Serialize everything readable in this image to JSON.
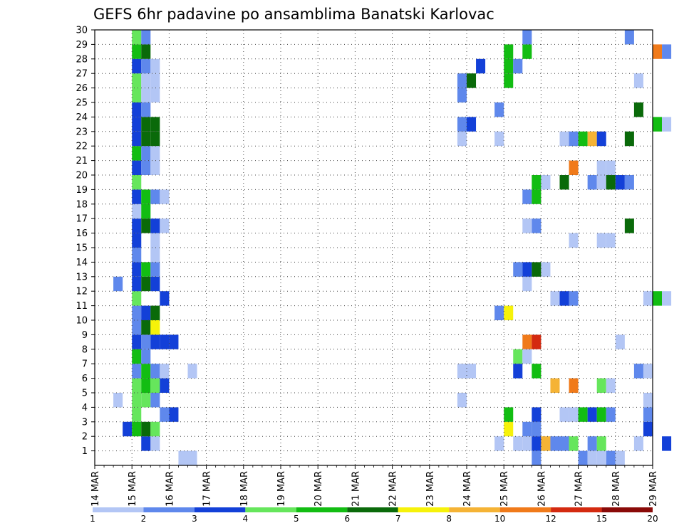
{
  "chart_data": {
    "type": "heatmap",
    "title": "GEFS 6hr padavine po ansamblima Banatski Karlovac",
    "x_ticks": [
      "14 MAR",
      "15 MAR",
      "16 MAR",
      "17 MAR",
      "18 MAR",
      "19 MAR",
      "20 MAR",
      "21 MAR",
      "22 MAR",
      "23 MAR",
      "24 MAR",
      "25 MAR",
      "26 MAR",
      "27 MAR",
      "28 MAR",
      "29 MAR"
    ],
    "y_ticks": [
      "1",
      "2",
      "3",
      "4",
      "5",
      "6",
      "7",
      "8",
      "9",
      "10",
      "11",
      "12",
      "13",
      "14",
      "15",
      "16",
      "17",
      "18",
      "19",
      "20",
      "21",
      "22",
      "23",
      "24",
      "25",
      "26",
      "27",
      "28",
      "29",
      "30"
    ],
    "xlim": [
      "14 MAR",
      "29 MAR"
    ],
    "steps_per_day": 4,
    "ylim": [
      0,
      30
    ],
    "grid": true,
    "legend_placement": "bottom",
    "legend_levels": [
      "1",
      "2",
      "3",
      "4",
      "5",
      "6",
      "7",
      "8",
      "10",
      "12",
      "15",
      "20"
    ],
    "legend_colors": [
      "#b3c6f5",
      "#5f88ec",
      "#1340d8",
      "#66e65c",
      "#12bd12",
      "#0a6a0a",
      "#f6f20a",
      "#f5b335",
      "#f07a1a",
      "#d42a10",
      "#8a0a08"
    ],
    "cells": [
      [
        0,
        2,
        3,
        3
      ],
      [
        0,
        2,
        4,
        5
      ],
      [
        0,
        3,
        4,
        4
      ],
      [
        0,
        4,
        4,
        4
      ],
      [
        0,
        5,
        4,
        4
      ],
      [
        0,
        6,
        4,
        2
      ],
      [
        0,
        7,
        4,
        5
      ],
      [
        0,
        8,
        4,
        3
      ],
      [
        0,
        9,
        4,
        2
      ],
      [
        0,
        10,
        4,
        2
      ],
      [
        0,
        11,
        4,
        4
      ],
      [
        0,
        12,
        4,
        3
      ],
      [
        0,
        13,
        4,
        3
      ],
      [
        0,
        14,
        4,
        2
      ],
      [
        0,
        15,
        4,
        3
      ],
      [
        0,
        16,
        4,
        3
      ],
      [
        0,
        17,
        4,
        1
      ],
      [
        0,
        18,
        4,
        3
      ],
      [
        0,
        19,
        4,
        4
      ],
      [
        0,
        20,
        4,
        3
      ],
      [
        0,
        21,
        4,
        5
      ],
      [
        0,
        22,
        4,
        3
      ],
      [
        0,
        23,
        4,
        3
      ],
      [
        0,
        24,
        4,
        3
      ],
      [
        0,
        25,
        4,
        4
      ],
      [
        0,
        26,
        4,
        4
      ],
      [
        0,
        27,
        4,
        3
      ],
      [
        0,
        28,
        4,
        5
      ],
      [
        0,
        29,
        4,
        4
      ],
      [
        0,
        1,
        5,
        3
      ],
      [
        0,
        2,
        5,
        6
      ],
      [
        0,
        4,
        5,
        4
      ],
      [
        0,
        5,
        5,
        5
      ],
      [
        0,
        6,
        5,
        5
      ],
      [
        0,
        7,
        5,
        2
      ],
      [
        0,
        8,
        5,
        2
      ],
      [
        0,
        9,
        5,
        6
      ],
      [
        0,
        10,
        5,
        3
      ],
      [
        0,
        12,
        5,
        6
      ],
      [
        0,
        13,
        5,
        5
      ],
      [
        0,
        16,
        5,
        6
      ],
      [
        0,
        17,
        5,
        5
      ],
      [
        0,
        18,
        5,
        5
      ],
      [
        0,
        20,
        5,
        2
      ],
      [
        0,
        21,
        5,
        2
      ],
      [
        0,
        22,
        5,
        6
      ],
      [
        0,
        23,
        5,
        6
      ],
      [
        0,
        24,
        5,
        2
      ],
      [
        0,
        25,
        5,
        1
      ],
      [
        0,
        26,
        5,
        1
      ],
      [
        0,
        27,
        5,
        2
      ],
      [
        0,
        28,
        5,
        6
      ],
      [
        0,
        29,
        5,
        2
      ],
      [
        0,
        1,
        6,
        1
      ],
      [
        0,
        2,
        6,
        4
      ],
      [
        0,
        4,
        6,
        2
      ],
      [
        0,
        5,
        6,
        4
      ],
      [
        0,
        6,
        6,
        2
      ],
      [
        0,
        8,
        6,
        3
      ],
      [
        0,
        9,
        6,
        7
      ],
      [
        0,
        10,
        6,
        6
      ],
      [
        0,
        12,
        6,
        3
      ],
      [
        0,
        13,
        6,
        2
      ],
      [
        0,
        14,
        6,
        1
      ],
      [
        0,
        15,
        6,
        1
      ],
      [
        0,
        16,
        6,
        3
      ],
      [
        0,
        18,
        6,
        2
      ],
      [
        0,
        20,
        6,
        1
      ],
      [
        0,
        21,
        6,
        1
      ],
      [
        0,
        22,
        6,
        6
      ],
      [
        0,
        23,
        6,
        6
      ],
      [
        0,
        25,
        6,
        1
      ],
      [
        0,
        26,
        6,
        1
      ],
      [
        0,
        27,
        6,
        1
      ],
      [
        0,
        3,
        7,
        2
      ],
      [
        0,
        5,
        7,
        3
      ],
      [
        0,
        6,
        7,
        1
      ],
      [
        0,
        8,
        7,
        3
      ],
      [
        0,
        11,
        7,
        3
      ],
      [
        0,
        16,
        7,
        1
      ],
      [
        0,
        18,
        7,
        1
      ],
      [
        0,
        3,
        8,
        3
      ],
      [
        0,
        8,
        8,
        3
      ],
      [
        0,
        0,
        9,
        1
      ],
      [
        0,
        6,
        10,
        1
      ],
      [
        0,
        0,
        10,
        1
      ],
      [
        0,
        12,
        2,
        2
      ],
      [
        0,
        4,
        2,
        1
      ],
      [
        0,
        4,
        39,
        1
      ],
      [
        0,
        6,
        39,
        1
      ],
      [
        0,
        6,
        40,
        1
      ],
      [
        0,
        22,
        39,
        1
      ],
      [
        0,
        23,
        39,
        2
      ],
      [
        0,
        25,
        39,
        2
      ],
      [
        0,
        26,
        39,
        2
      ],
      [
        0,
        23,
        40,
        3
      ],
      [
        0,
        26,
        40,
        6
      ],
      [
        0,
        27,
        41,
        3
      ],
      [
        0,
        1,
        43,
        1
      ],
      [
        0,
        10,
        43,
        2
      ],
      [
        0,
        10,
        44,
        7
      ],
      [
        0,
        1,
        45,
        1
      ],
      [
        0,
        1,
        46,
        1
      ],
      [
        0,
        2,
        44,
        7
      ],
      [
        0,
        3,
        44,
        5
      ],
      [
        0,
        22,
        43,
        1
      ],
      [
        0,
        24,
        43,
        2
      ],
      [
        0,
        26,
        44,
        5
      ],
      [
        0,
        27,
        44,
        5
      ],
      [
        0,
        28,
        44,
        5
      ],
      [
        0,
        27,
        45,
        2
      ],
      [
        0,
        28,
        46,
        5
      ],
      [
        0,
        7,
        45,
        4
      ],
      [
        0,
        6,
        45,
        3
      ],
      [
        0,
        12,
        46,
        1
      ],
      [
        0,
        13,
        45,
        2
      ],
      [
        0,
        13,
        46,
        3
      ],
      [
        0,
        13,
        47,
        6
      ],
      [
        0,
        13,
        48,
        1
      ],
      [
        0,
        8,
        46,
        9
      ],
      [
        0,
        8,
        47,
        10
      ],
      [
        0,
        7,
        46,
        1
      ],
      [
        0,
        6,
        47,
        5
      ],
      [
        0,
        2,
        46,
        2
      ],
      [
        0,
        2,
        47,
        2
      ],
      [
        0,
        1,
        47,
        3
      ],
      [
        0,
        1,
        48,
        8
      ],
      [
        0,
        18,
        46,
        2
      ],
      [
        0,
        18,
        47,
        5
      ],
      [
        0,
        19,
        47,
        5
      ],
      [
        0,
        19,
        48,
        1
      ],
      [
        0,
        16,
        47,
        2
      ],
      [
        0,
        19,
        50,
        6
      ],
      [
        0,
        16,
        46,
        1
      ],
      [
        0,
        29,
        46,
        2
      ],
      [
        0,
        0,
        47,
        2
      ],
      [
        0,
        0,
        52,
        2
      ],
      [
        0,
        3,
        47,
        3
      ],
      [
        0,
        3,
        50,
        1
      ],
      [
        0,
        3,
        51,
        1
      ],
      [
        0,
        3,
        52,
        5
      ],
      [
        0,
        3,
        53,
        3
      ],
      [
        0,
        3,
        54,
        5
      ],
      [
        0,
        3,
        55,
        2
      ],
      [
        0,
        1,
        49,
        2
      ],
      [
        0,
        1,
        50,
        2
      ],
      [
        0,
        1,
        51,
        4
      ],
      [
        0,
        1,
        53,
        2
      ],
      [
        0,
        1,
        54,
        4
      ],
      [
        0,
        5,
        49,
        8
      ],
      [
        0,
        11,
        49,
        1
      ],
      [
        0,
        11,
        50,
        3
      ],
      [
        0,
        11,
        51,
        2
      ],
      [
        0,
        15,
        51,
        1
      ],
      [
        0,
        15,
        54,
        1
      ],
      [
        0,
        15,
        55,
        1
      ],
      [
        0,
        5,
        51,
        9
      ],
      [
        0,
        5,
        54,
        4
      ],
      [
        0,
        5,
        55,
        1
      ],
      [
        0,
        22,
        50,
        1
      ],
      [
        0,
        22,
        51,
        2
      ],
      [
        0,
        22,
        52,
        5
      ],
      [
        0,
        22,
        53,
        8
      ],
      [
        0,
        22,
        54,
        3
      ],
      [
        0,
        20,
        51,
        9
      ],
      [
        0,
        19,
        53,
        2
      ],
      [
        0,
        19,
        54,
        1
      ],
      [
        0,
        19,
        55,
        6
      ],
      [
        0,
        19,
        56,
        3
      ],
      [
        0,
        19,
        57,
        2
      ],
      [
        0,
        20,
        54,
        1
      ],
      [
        0,
        20,
        55,
        1
      ],
      [
        0,
        0,
        53,
        1
      ],
      [
        0,
        0,
        55,
        2
      ],
      [
        0,
        8,
        56,
        1
      ],
      [
        0,
        16,
        57,
        6
      ],
      [
        0,
        22,
        57,
        6
      ],
      [
        0,
        0,
        54,
        1
      ],
      [
        0,
        0,
        56,
        1
      ],
      [
        0,
        6,
        58,
        2
      ],
      [
        0,
        6,
        59,
        1
      ],
      [
        0,
        4,
        59,
        1
      ],
      [
        0,
        1,
        58,
        1
      ],
      [
        0,
        2,
        59,
        3
      ],
      [
        0,
        3,
        59,
        2
      ],
      [
        0,
        11,
        59,
        1
      ],
      [
        0,
        11,
        60,
        5
      ],
      [
        0,
        11,
        61,
        1
      ],
      [
        0,
        23,
        60,
        5
      ],
      [
        0,
        23,
        61,
        1
      ],
      [
        0,
        24,
        58,
        6
      ],
      [
        0,
        26,
        58,
        1
      ],
      [
        0,
        28,
        60,
        9
      ],
      [
        0,
        28,
        61,
        2
      ],
      [
        0,
        1,
        61,
        3
      ],
      [
        0,
        29,
        57,
        2
      ]
    ]
  }
}
